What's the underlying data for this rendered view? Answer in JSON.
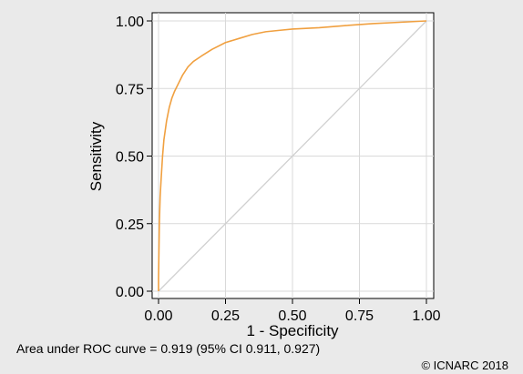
{
  "chart_data": {
    "type": "line",
    "xlabel": "1 - Specificity",
    "ylabel": "Sensitivity",
    "xlim": [
      0,
      1
    ],
    "ylim": [
      0,
      1
    ],
    "x_ticks": [
      "0.00",
      "0.25",
      "0.50",
      "0.75",
      "1.00"
    ],
    "y_ticks": [
      "0.00",
      "0.25",
      "0.50",
      "0.75",
      "1.00"
    ],
    "grid": true,
    "series": [
      {
        "color": "#f0a040",
        "x": [
          0.0,
          0.0,
          0.003,
          0.006,
          0.01,
          0.015,
          0.02,
          0.03,
          0.04,
          0.05,
          0.06,
          0.075,
          0.09,
          0.11,
          0.13,
          0.16,
          0.2,
          0.25,
          0.3,
          0.35,
          0.4,
          0.45,
          0.5,
          0.6,
          0.7,
          0.8,
          0.9,
          1.0
        ],
        "y": [
          0.0,
          0.05,
          0.25,
          0.35,
          0.42,
          0.5,
          0.56,
          0.63,
          0.68,
          0.715,
          0.74,
          0.77,
          0.8,
          0.83,
          0.85,
          0.87,
          0.895,
          0.92,
          0.935,
          0.95,
          0.96,
          0.965,
          0.97,
          0.975,
          0.983,
          0.99,
          0.995,
          1.0
        ]
      },
      {
        "color": "#d0d0d0",
        "x": [
          0,
          1
        ],
        "y": [
          0,
          1
        ]
      }
    ]
  },
  "footer": {
    "auc_text": "Area under ROC curve = 0.919 (95% CI 0.911, 0.927)",
    "copyright": "© ICNARC 2018"
  }
}
